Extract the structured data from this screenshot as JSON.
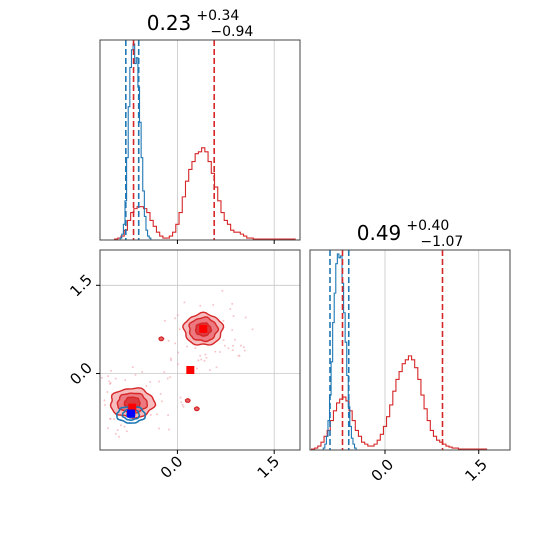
{
  "colors": {
    "red": "#d62728",
    "blue": "#1f77b4",
    "fill_light": "#f4a5a8",
    "fill_mid": "#e8636a",
    "fill_dark": "#d62728",
    "marker_red": "#ff0000",
    "marker_blue": "#0000ff",
    "grid": "#c8c8c8"
  },
  "chart_data": [
    {
      "type": "histogram",
      "panel": "marginal-param-1",
      "title": {
        "value": "0.23",
        "sup": "+0.34",
        "sub": "−0.94"
      },
      "xlim": [
        -1.2,
        1.9
      ],
      "xticks": [
        0.0,
        1.5
      ],
      "grid": true,
      "series": [
        {
          "color": "red",
          "bin_centers": [
            -0.95,
            -0.9,
            -0.85,
            -0.8,
            -0.75,
            -0.7,
            -0.65,
            -0.6,
            -0.55,
            -0.5,
            -0.45,
            -0.4,
            -0.35,
            -0.3,
            -0.25,
            -0.2,
            -0.15,
            -0.1,
            -0.05,
            0.0,
            0.05,
            0.1,
            0.15,
            0.2,
            0.25,
            0.3,
            0.35,
            0.4,
            0.45,
            0.5,
            0.55,
            0.6,
            0.65,
            0.7,
            0.75,
            0.8,
            0.85,
            0.9,
            0.95,
            1.0,
            1.05,
            1.1,
            1.15,
            1.2,
            1.25,
            1.3,
            1.35,
            1.4,
            1.45,
            1.5,
            1.55,
            1.6,
            1.65,
            1.7,
            1.75,
            1.8
          ],
          "counts": [
            0.005,
            0.01,
            0.02,
            0.05,
            0.1,
            0.14,
            0.16,
            0.17,
            0.17,
            0.16,
            0.14,
            0.1,
            0.07,
            0.04,
            0.02,
            0.01,
            0.01,
            0.02,
            0.04,
            0.08,
            0.14,
            0.22,
            0.3,
            0.36,
            0.4,
            0.44,
            0.45,
            0.47,
            0.45,
            0.4,
            0.34,
            0.27,
            0.2,
            0.14,
            0.1,
            0.08,
            0.05,
            0.04,
            0.04,
            0.03,
            0.02,
            0.01,
            0.01,
            0.005,
            0.005,
            0.005,
            0.005,
            0.005,
            0.005,
            0.005,
            0.005,
            0.005,
            0.005,
            0.005,
            0.005,
            0.005
          ]
        },
        {
          "color": "blue",
          "bin_centers": [
            -0.9,
            -0.875,
            -0.85,
            -0.825,
            -0.8,
            -0.775,
            -0.75,
            -0.725,
            -0.7,
            -0.675,
            -0.65,
            -0.625,
            -0.6,
            -0.575,
            -0.55,
            -0.525,
            -0.5,
            -0.475,
            -0.45,
            -0.425,
            -0.4
          ],
          "counts": [
            0.0,
            0.01,
            0.03,
            0.08,
            0.2,
            0.42,
            0.68,
            0.88,
            0.97,
            1.0,
            0.9,
            0.93,
            0.78,
            0.6,
            0.42,
            0.25,
            0.12,
            0.05,
            0.02,
            0.01,
            0.0
          ]
        }
      ],
      "quantile_lines": [
        {
          "color": "blue",
          "values": [
            -0.8,
            -0.6
          ]
        },
        {
          "color": "red",
          "values": [
            -0.68,
            0.57
          ]
        }
      ]
    },
    {
      "type": "histogram",
      "panel": "marginal-param-2",
      "title": {
        "value": "0.49",
        "sup": "+0.40",
        "sub": "−1.07"
      },
      "xlim": [
        -1.2,
        2.0
      ],
      "xticks": [
        0.0,
        1.5
      ],
      "xtick_labels": [
        "0.0",
        "1.5"
      ],
      "grid": true,
      "series": [
        {
          "color": "red",
          "bin_centers": [
            -1.15,
            -1.1,
            -1.05,
            -1.0,
            -0.95,
            -0.9,
            -0.85,
            -0.8,
            -0.75,
            -0.7,
            -0.65,
            -0.6,
            -0.55,
            -0.5,
            -0.45,
            -0.4,
            -0.35,
            -0.3,
            -0.25,
            -0.2,
            -0.15,
            -0.1,
            -0.05,
            0.0,
            0.05,
            0.1,
            0.15,
            0.2,
            0.25,
            0.3,
            0.35,
            0.4,
            0.45,
            0.5,
            0.55,
            0.6,
            0.65,
            0.7,
            0.75,
            0.8,
            0.85,
            0.9,
            0.95,
            1.0,
            1.05,
            1.1,
            1.15,
            1.2,
            1.25,
            1.3,
            1.35,
            1.4,
            1.45,
            1.5,
            1.55,
            1.6
          ],
          "counts": [
            0.005,
            0.01,
            0.02,
            0.04,
            0.07,
            0.1,
            0.15,
            0.2,
            0.24,
            0.26,
            0.27,
            0.25,
            0.2,
            0.15,
            0.1,
            0.07,
            0.04,
            0.03,
            0.02,
            0.02,
            0.03,
            0.05,
            0.08,
            0.12,
            0.17,
            0.23,
            0.3,
            0.36,
            0.4,
            0.44,
            0.46,
            0.48,
            0.46,
            0.42,
            0.36,
            0.28,
            0.21,
            0.15,
            0.1,
            0.07,
            0.05,
            0.04,
            0.03,
            0.02,
            0.015,
            0.01,
            0.01,
            0.005,
            0.005,
            0.005,
            0.005,
            0.005,
            0.005,
            0.005,
            0.005,
            0.005
          ]
        },
        {
          "color": "blue",
          "bin_centers": [
            -1.0,
            -0.975,
            -0.95,
            -0.925,
            -0.9,
            -0.875,
            -0.85,
            -0.825,
            -0.8,
            -0.775,
            -0.75,
            -0.725,
            -0.7,
            -0.675,
            -0.65,
            -0.625,
            -0.6,
            -0.575,
            -0.55,
            -0.525,
            -0.5,
            -0.475,
            -0.45
          ],
          "counts": [
            0.0,
            0.01,
            0.03,
            0.07,
            0.15,
            0.28,
            0.45,
            0.65,
            0.8,
            0.95,
            1.0,
            0.98,
            0.99,
            0.85,
            0.7,
            0.55,
            0.38,
            0.22,
            0.12,
            0.06,
            0.03,
            0.01,
            0.0
          ]
        }
      ],
      "quantile_lines": [
        {
          "color": "blue",
          "values": [
            -0.88,
            -0.58
          ]
        },
        {
          "color": "red",
          "values": [
            -0.68,
            0.92
          ]
        }
      ]
    },
    {
      "type": "contour",
      "panel": "joint-param-1-vs-param-2",
      "xlim": [
        -1.2,
        1.9
      ],
      "ylim": [
        -1.3,
        2.1
      ],
      "xticks": [
        0.0,
        1.5
      ],
      "xtick_labels": [
        "0.0",
        "1.5"
      ],
      "yticks": [
        0.0,
        1.5
      ],
      "ytick_labels": [
        "0.0",
        "1.5"
      ],
      "grid": true,
      "red_modes": [
        {
          "cx": 0.4,
          "cy": 0.75,
          "levels": [
            [
              0.3,
              0.27
            ],
            [
              0.22,
              0.2
            ],
            [
              0.12,
              0.11
            ]
          ]
        },
        {
          "cx": -0.7,
          "cy": -0.5,
          "levels": [
            [
              0.34,
              0.25
            ],
            [
              0.23,
              0.17
            ],
            [
              0.12,
              0.1
            ]
          ]
        }
      ],
      "red_islands": [
        {
          "cx": 0.16,
          "cy": -0.46
        },
        {
          "cx": 0.3,
          "cy": -0.6
        },
        {
          "cx": -0.25,
          "cy": 0.59
        }
      ],
      "blue_mode": {
        "cx": -0.72,
        "cy": -0.7,
        "levels": [
          [
            0.22,
            0.14
          ],
          [
            0.13,
            0.09
          ],
          [
            0.06,
            0.05
          ]
        ]
      },
      "markers": [
        {
          "color": "marker_red",
          "x": 0.4,
          "y": 0.76
        },
        {
          "color": "marker_red",
          "x": 0.2,
          "y": 0.06
        },
        {
          "color": "marker_red",
          "x": -0.7,
          "y": -0.58
        },
        {
          "color": "marker_blue",
          "x": -0.72,
          "y": -0.68
        }
      ]
    }
  ]
}
